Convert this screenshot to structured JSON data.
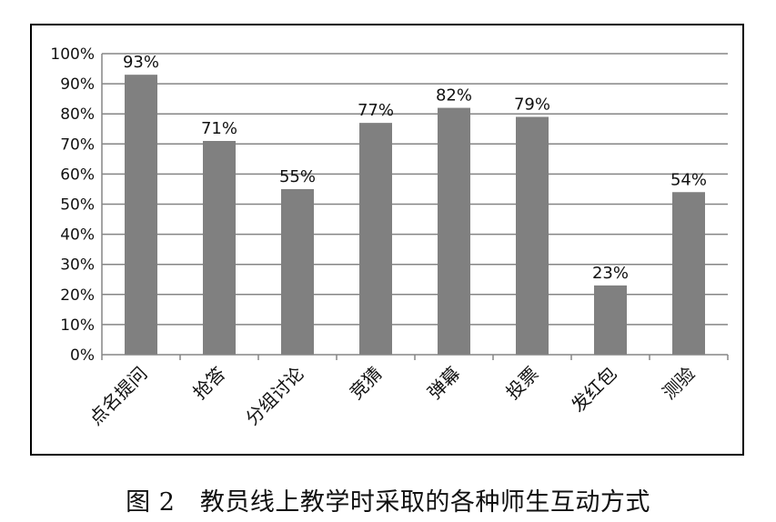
{
  "chart_data": {
    "type": "bar",
    "categories": [
      "点名提问",
      "抢答",
      "分组讨论",
      "竞猜",
      "弹幕",
      "投票",
      "发红包",
      "测验"
    ],
    "values": [
      93,
      71,
      55,
      77,
      82,
      79,
      23,
      54
    ],
    "data_labels": [
      "93%",
      "71%",
      "55%",
      "77%",
      "82%",
      "79%",
      "23%",
      "54%"
    ],
    "ylim": [
      0,
      100
    ],
    "y_ticks": [
      {
        "value": 0,
        "label": "0%"
      },
      {
        "value": 10,
        "label": "10%"
      },
      {
        "value": 20,
        "label": "20%"
      },
      {
        "value": 30,
        "label": "30%"
      },
      {
        "value": 40,
        "label": "40%"
      },
      {
        "value": 50,
        "label": "50%"
      },
      {
        "value": 60,
        "label": "60%"
      },
      {
        "value": 70,
        "label": "70%"
      },
      {
        "value": 80,
        "label": "80%"
      },
      {
        "value": 90,
        "label": "90%"
      },
      {
        "value": 100,
        "label": "100%"
      }
    ],
    "grid": true,
    "bar_color": "#808080",
    "grid_color": "#858585"
  },
  "caption": "图 2　教员线上教学时采取的各种师生互动方式"
}
